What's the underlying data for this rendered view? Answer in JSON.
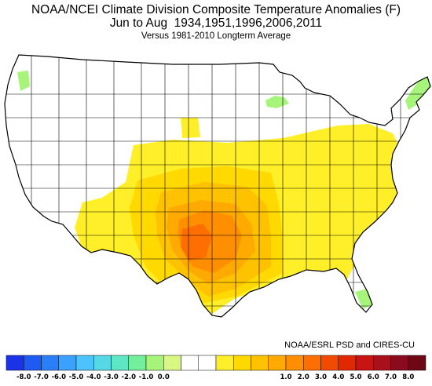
{
  "header": {
    "title": "NOAA/NCEI Climate Division Composite Temperature Anomalies (F)",
    "subtitle": "Jun to Aug  1934,1951,1996,2006,2011",
    "baseline": "Versus 1981-2010 Longterm Average"
  },
  "credit": "NOAA/ESRL PSD and CIRES-CU",
  "legend": {
    "colors": [
      "#1a33e6",
      "#1f5af2",
      "#2a7ff8",
      "#3aa2fc",
      "#4cc3fc",
      "#57d8e6",
      "#5fe6c4",
      "#73ee9a",
      "#a7f47a",
      "#d8f883",
      "#ffffff",
      "#ffffff",
      "#ffef28",
      "#ffd900",
      "#ffc200",
      "#ffaa00",
      "#ff8f00",
      "#ff6e00",
      "#f24a00",
      "#e12800",
      "#c81412",
      "#a8101c",
      "#8a0a1e",
      "#6e0814"
    ],
    "tick_labels": [
      "-8.0",
      "-7.0",
      "-6.0",
      "-5.0",
      "-4.0",
      "-3.0",
      "-2.0",
      "-1.0",
      "0.0",
      "1.0",
      "2.0",
      "3.0",
      "4.0",
      "5.0",
      "6.0",
      "7.0",
      "8.0"
    ]
  },
  "map": {
    "region": "Contiguous United States",
    "palette": {
      "no_anomaly": "#ffffff",
      "cool_light": "#a7f47a",
      "warm_1": "#ffef28",
      "warm_2": "#ffd900",
      "warm_3": "#ffc200",
      "warm_4": "#ffaa00",
      "warm_5": "#ff8f00",
      "warm_6": "#ff6e00"
    }
  }
}
